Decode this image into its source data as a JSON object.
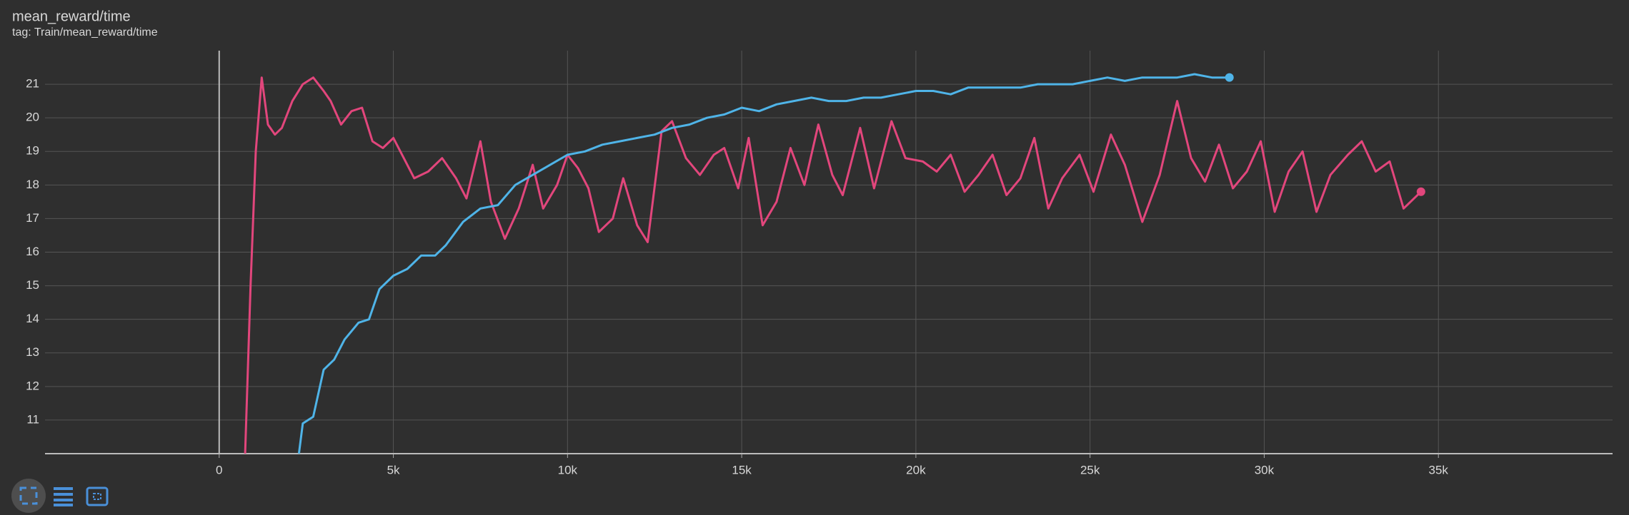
{
  "chart_data": {
    "type": "line",
    "title": "mean_reward/time",
    "subtitle": "tag: Train/mean_reward/time",
    "xlim": [
      -5000,
      40000
    ],
    "ylim": [
      10,
      22
    ],
    "xticks": [
      0,
      {
        "value": 5000,
        "label": "5k"
      },
      {
        "value": 10000,
        "label": "10k"
      },
      {
        "value": 15000,
        "label": "15k"
      },
      {
        "value": 20000,
        "label": "20k"
      },
      {
        "value": 25000,
        "label": "25k"
      },
      {
        "value": 30000,
        "label": "30k"
      },
      {
        "value": 35000,
        "label": "35k"
      }
    ],
    "yticks": [
      11,
      12,
      13,
      14,
      15,
      16,
      17,
      18,
      19,
      20,
      21
    ],
    "grid": true,
    "series": [
      {
        "color": "#e2467c",
        "x": [
          744,
          900,
          1050,
          1220,
          1400,
          1600,
          1800,
          2100,
          2400,
          2700,
          3000,
          3200,
          3500,
          3800,
          4100,
          4400,
          4700,
          5000,
          5300,
          5600,
          6000,
          6400,
          6800,
          7100,
          7500,
          7800,
          8200,
          8600,
          9000,
          9300,
          9700,
          10000,
          10300,
          10600,
          10900,
          11300,
          11600,
          12000,
          12300,
          12700,
          13000,
          13400,
          13800,
          14200,
          14500,
          14900,
          15200,
          15600,
          16000,
          16400,
          16800,
          17200,
          17600,
          17900,
          18400,
          18800,
          19300,
          19700,
          20200,
          20600,
          21000,
          21400,
          21800,
          22200,
          22600,
          23000,
          23400,
          23800,
          24200,
          24700,
          25100,
          25600,
          26000,
          26500,
          27000,
          27500,
          27900,
          28300,
          28700,
          29100,
          29500,
          29900,
          30300,
          30700,
          31100,
          31500,
          31900,
          32400,
          32800,
          33200,
          33600,
          34000,
          34300,
          34500
        ],
        "values": [
          10,
          15,
          19,
          21.2,
          19.8,
          19.5,
          19.7,
          20.5,
          21,
          21.2,
          20.8,
          20.5,
          19.8,
          20.2,
          20.3,
          19.3,
          19.1,
          19.4,
          18.8,
          18.2,
          18.4,
          18.8,
          18.2,
          17.6,
          19.3,
          17.5,
          16.4,
          17.3,
          18.6,
          17.3,
          18,
          18.9,
          18.5,
          17.9,
          16.6,
          17,
          18.2,
          16.8,
          16.3,
          19.6,
          19.9,
          18.8,
          18.3,
          18.9,
          19.1,
          17.9,
          19.4,
          16.8,
          17.5,
          19.1,
          18,
          19.8,
          18.3,
          17.7,
          19.7,
          17.9,
          19.9,
          18.8,
          18.7,
          18.4,
          18.9,
          17.8,
          18.3,
          18.9,
          17.7,
          18.2,
          19.4,
          17.3,
          18.2,
          18.9,
          17.8,
          19.5,
          18.6,
          16.9,
          18.3,
          20.5,
          18.8,
          18.1,
          19.2,
          17.9,
          18.4,
          19.3,
          17.2,
          18.4,
          19,
          17.2,
          18.3,
          18.9,
          19.3,
          18.4,
          18.7,
          17.3,
          17.6,
          17.8
        ]
      },
      {
        "color": "#4fb4e8",
        "x": [
          2290,
          2400,
          2700,
          3000,
          3300,
          3600,
          4000,
          4300,
          4600,
          5000,
          5400,
          5800,
          6200,
          6500,
          7000,
          7500,
          8000,
          8500,
          9000,
          9500,
          10000,
          10500,
          11000,
          11500,
          12000,
          12500,
          13000,
          13500,
          14000,
          14500,
          15000,
          15500,
          16000,
          16500,
          17000,
          17500,
          18000,
          18500,
          19000,
          19500,
          20000,
          20500,
          21000,
          21500,
          22000,
          22500,
          23000,
          23500,
          24000,
          24500,
          25000,
          25500,
          26000,
          26500,
          27000,
          27500,
          28000,
          28500,
          29000
        ],
        "values": [
          10,
          10.9,
          11.1,
          12.5,
          12.8,
          13.4,
          13.9,
          14,
          14.9,
          15.3,
          15.5,
          15.9,
          15.9,
          16.2,
          16.9,
          17.3,
          17.4,
          18,
          18.3,
          18.6,
          18.9,
          19,
          19.2,
          19.3,
          19.4,
          19.5,
          19.7,
          19.8,
          20,
          20.1,
          20.3,
          20.2,
          20.4,
          20.5,
          20.6,
          20.5,
          20.5,
          20.6,
          20.6,
          20.7,
          20.8,
          20.8,
          20.7,
          20.9,
          20.9,
          20.9,
          20.9,
          21,
          21,
          21,
          21.1,
          21.2,
          21.1,
          21.2,
          21.2,
          21.2,
          21.3,
          21.2,
          21.2
        ]
      }
    ]
  }
}
